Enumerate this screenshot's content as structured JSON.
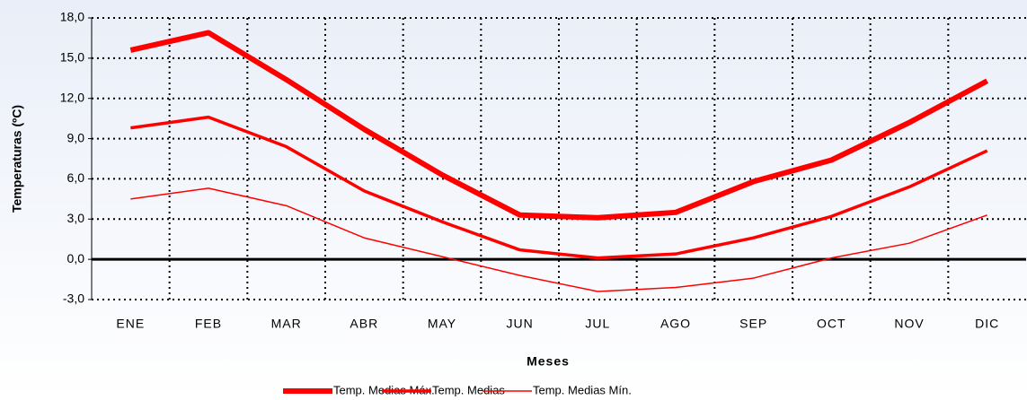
{
  "chart_data": {
    "type": "line",
    "y_label": "Temperaturas (ºC)",
    "x_label": "Meses",
    "categories": [
      "ENE",
      "FEB",
      "MAR",
      "ABR",
      "MAY",
      "JUN",
      "JUL",
      "AGO",
      "SEP",
      "OCT",
      "NOV",
      "DIC"
    ],
    "series": [
      {
        "name": "Temp. Medias Máx.",
        "color": "#ff0000",
        "line_width": 6,
        "values": [
          15.6,
          16.9,
          13.4,
          9.7,
          6.3,
          3.3,
          3.1,
          3.5,
          5.8,
          7.4,
          10.2,
          13.3
        ]
      },
      {
        "name": "Temp. Medias",
        "color": "#ff0000",
        "line_width": 3.5,
        "values": [
          9.8,
          10.6,
          8.4,
          5.1,
          2.8,
          0.7,
          0.1,
          0.4,
          1.6,
          3.2,
          5.4,
          8.1
        ]
      },
      {
        "name": "Temp. Medias Mín.",
        "color": "#ff0000",
        "line_width": 1.5,
        "values": [
          4.5,
          5.3,
          4.0,
          1.6,
          0.2,
          -1.2,
          -2.4,
          -2.1,
          -1.4,
          0.1,
          1.2,
          3.3
        ]
      }
    ],
    "ylim": [
      -3,
      18
    ],
    "yticks": [
      {
        "value": -3,
        "label": "-3,0"
      },
      {
        "value": 0,
        "label": "0,0"
      },
      {
        "value": 3,
        "label": "3,0"
      },
      {
        "value": 6,
        "label": "6,0"
      },
      {
        "value": 9,
        "label": "9,0"
      },
      {
        "value": 12,
        "label": "12,0"
      },
      {
        "value": 15,
        "label": "15,0"
      },
      {
        "value": 18,
        "label": "18,0"
      }
    ],
    "grid": true,
    "legend": "bottom"
  }
}
